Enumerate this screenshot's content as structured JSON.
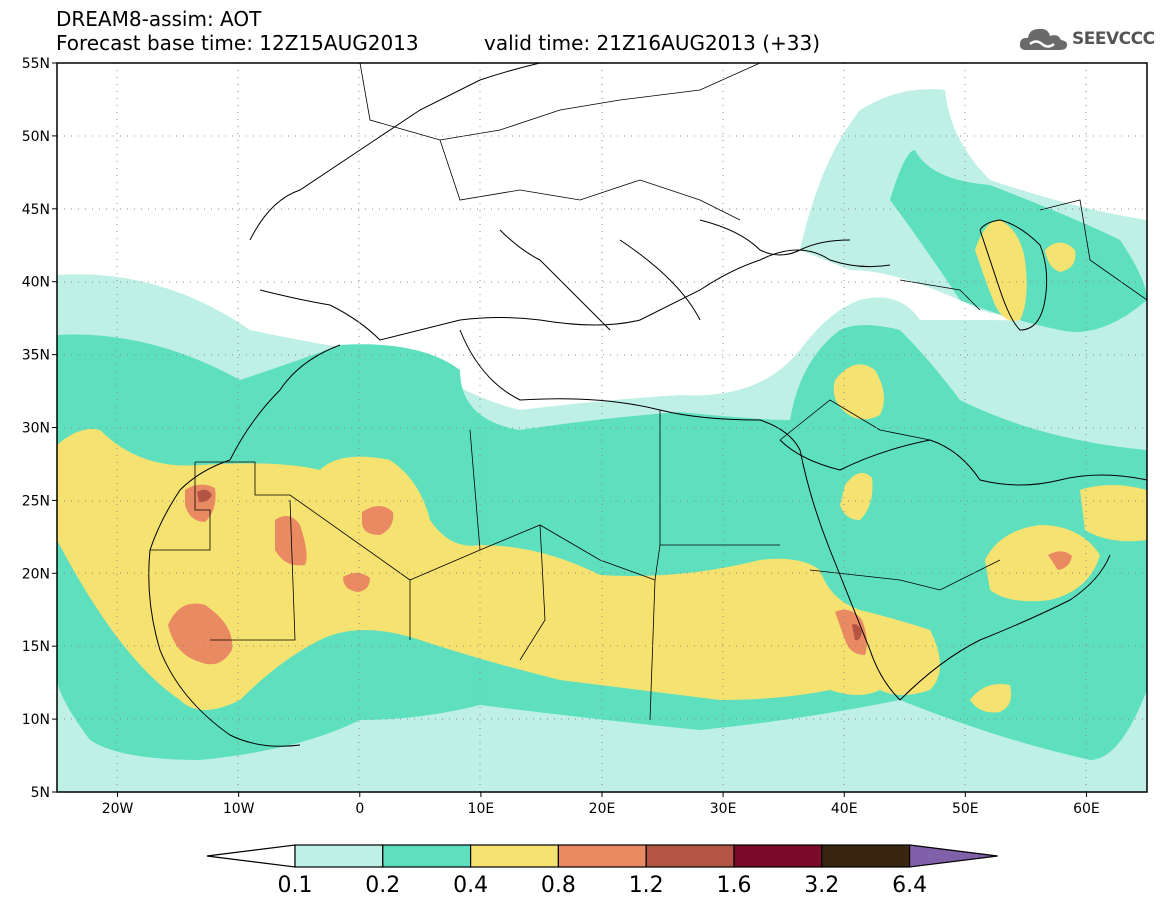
{
  "header": {
    "title_line1": "DREAM8-assim: AOT",
    "title_line2": "Forecast base time: 12Z15AUG2013",
    "valid_time": "valid time: 21Z16AUG2013 (+33)"
  },
  "logo": {
    "icon": "cloud-logo-icon",
    "text": "SEEVCCC"
  },
  "map": {
    "lon_range": [
      -25,
      65
    ],
    "lat_range": [
      5,
      55
    ],
    "lat_ticks": [
      "55N",
      "50N",
      "45N",
      "40N",
      "35N",
      "30N",
      "25N",
      "20N",
      "15N",
      "10N",
      "5N"
    ],
    "lon_ticks": [
      "20W",
      "10W",
      "0",
      "10E",
      "20E",
      "30E",
      "40E",
      "50E",
      "60E"
    ],
    "gridlines": "dotted"
  },
  "colorbar": {
    "levels": [
      "0.1",
      "0.2",
      "0.4",
      "0.8",
      "1.2",
      "1.6",
      "3.2",
      "6.4"
    ],
    "colors": [
      "#ffffff",
      "#bff0e6",
      "#5ee0bf",
      "#f6e271",
      "#e98a62",
      "#b45444",
      "#7a0a27",
      "#3a2510",
      "#8060a8"
    ]
  }
}
